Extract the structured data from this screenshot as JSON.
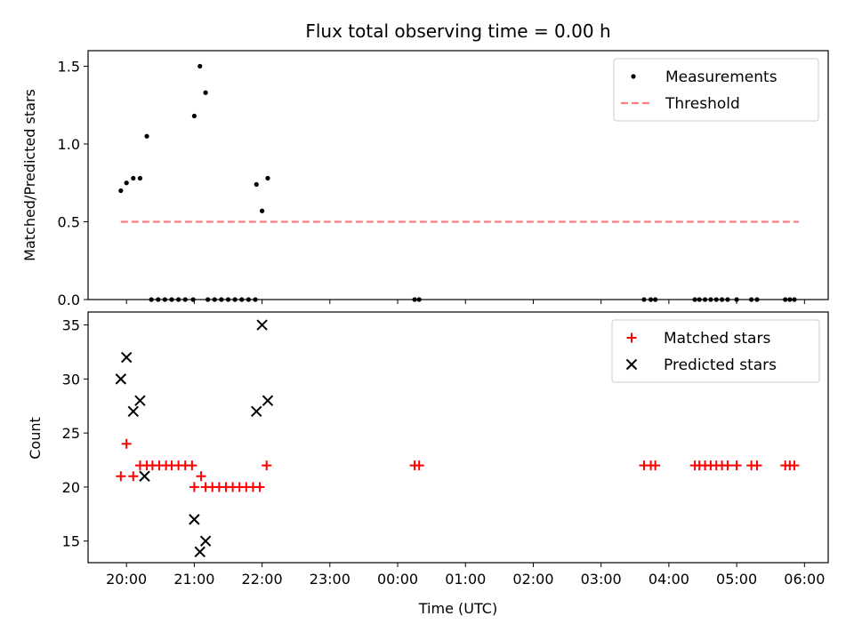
{
  "chart_data": [
    {
      "type": "scatter",
      "title": "Flux total observing time = 0.00 h",
      "xlabel": "",
      "ylabel": "Matched/Predicted stars",
      "xlim": [
        "19:26",
        "06:21"
      ],
      "ylim": [
        0,
        1.6
      ],
      "yticks": [
        "0.0",
        "0.5",
        "1.0",
        "1.5"
      ],
      "legend_position": "upper right",
      "series": [
        {
          "name": "Measurements",
          "kind": "point",
          "color": "#000000",
          "points": [
            [
              "19:55",
              0.7
            ],
            [
              "20:00",
              0.75
            ],
            [
              "20:06",
              0.78
            ],
            [
              "20:12",
              0.78
            ],
            [
              "20:18",
              1.05
            ],
            [
              "20:22",
              0.0
            ],
            [
              "20:28",
              0.0
            ],
            [
              "20:34",
              0.0
            ],
            [
              "20:40",
              0.0
            ],
            [
              "20:46",
              0.0
            ],
            [
              "20:52",
              0.0
            ],
            [
              "20:59",
              0.0
            ],
            [
              "21:00",
              1.18
            ],
            [
              "21:05",
              1.5
            ],
            [
              "21:10",
              1.33
            ],
            [
              "21:12",
              0.0
            ],
            [
              "21:18",
              0.0
            ],
            [
              "21:24",
              0.0
            ],
            [
              "21:30",
              0.0
            ],
            [
              "21:36",
              0.0
            ],
            [
              "21:42",
              0.0
            ],
            [
              "21:48",
              0.0
            ],
            [
              "21:54",
              0.0
            ],
            [
              "21:55",
              0.74
            ],
            [
              "22:00",
              0.57
            ],
            [
              "22:05",
              0.78
            ],
            [
              "00:15",
              0.0
            ],
            [
              "00:19",
              0.0
            ],
            [
              "03:38",
              0.0
            ],
            [
              "03:44",
              0.0
            ],
            [
              "03:48",
              0.0
            ],
            [
              "04:23",
              0.0
            ],
            [
              "04:27",
              0.0
            ],
            [
              "04:32",
              0.0
            ],
            [
              "04:37",
              0.0
            ],
            [
              "04:42",
              0.0
            ],
            [
              "04:47",
              0.0
            ],
            [
              "04:52",
              0.0
            ],
            [
              "05:00",
              0.0
            ],
            [
              "05:13",
              0.0
            ],
            [
              "05:18",
              0.0
            ],
            [
              "05:43",
              0.0
            ],
            [
              "05:47",
              0.0
            ],
            [
              "05:51",
              0.0
            ]
          ]
        },
        {
          "name": "Threshold",
          "kind": "dashed-line",
          "color": "#ff7f7f",
          "points": [
            [
              "19:55",
              0.5
            ],
            [
              "05:55",
              0.5
            ]
          ]
        }
      ]
    },
    {
      "type": "scatter",
      "title": "",
      "xlabel": "Time (UTC)",
      "ylabel": "Count",
      "xlim": [
        "19:26",
        "06:21"
      ],
      "ylim": [
        13,
        36.2
      ],
      "yticks": [
        "15",
        "20",
        "25",
        "30",
        "35"
      ],
      "xticks": [
        "20:00",
        "21:00",
        "22:00",
        "23:00",
        "00:00",
        "01:00",
        "02:00",
        "03:00",
        "04:00",
        "05:00",
        "06:00"
      ],
      "legend_position": "upper right",
      "series": [
        {
          "name": "Matched stars",
          "kind": "plus",
          "color": "#ff0000",
          "points": [
            [
              "19:55",
              21
            ],
            [
              "20:00",
              24
            ],
            [
              "20:06",
              21
            ],
            [
              "20:12",
              22
            ],
            [
              "20:18",
              22
            ],
            [
              "20:23",
              22
            ],
            [
              "20:29",
              22
            ],
            [
              "20:35",
              22
            ],
            [
              "20:40",
              22
            ],
            [
              "20:46",
              22
            ],
            [
              "20:52",
              22
            ],
            [
              "20:58",
              22
            ],
            [
              "21:00",
              20
            ],
            [
              "21:06",
              21
            ],
            [
              "21:10",
              20
            ],
            [
              "21:16",
              20
            ],
            [
              "21:22",
              20
            ],
            [
              "21:28",
              20
            ],
            [
              "21:34",
              20
            ],
            [
              "21:40",
              20
            ],
            [
              "21:46",
              20
            ],
            [
              "21:52",
              20
            ],
            [
              "21:58",
              20
            ],
            [
              "22:04",
              22
            ],
            [
              "00:15",
              22
            ],
            [
              "00:19",
              22
            ],
            [
              "03:38",
              22
            ],
            [
              "03:44",
              22
            ],
            [
              "03:48",
              22
            ],
            [
              "04:23",
              22
            ],
            [
              "04:27",
              22
            ],
            [
              "04:32",
              22
            ],
            [
              "04:37",
              22
            ],
            [
              "04:42",
              22
            ],
            [
              "04:47",
              22
            ],
            [
              "04:52",
              22
            ],
            [
              "05:00",
              22
            ],
            [
              "05:13",
              22
            ],
            [
              "05:18",
              22
            ],
            [
              "05:43",
              22
            ],
            [
              "05:47",
              22
            ],
            [
              "05:51",
              22
            ]
          ]
        },
        {
          "name": "Predicted stars",
          "kind": "cross",
          "color": "#000000",
          "points": [
            [
              "19:55",
              30
            ],
            [
              "20:00",
              32
            ],
            [
              "20:06",
              27
            ],
            [
              "20:12",
              28
            ],
            [
              "20:16",
              21
            ],
            [
              "21:00",
              17
            ],
            [
              "21:05",
              14
            ],
            [
              "21:10",
              15
            ],
            [
              "21:55",
              27
            ],
            [
              "22:00",
              35
            ],
            [
              "22:05",
              28
            ]
          ]
        }
      ]
    }
  ]
}
